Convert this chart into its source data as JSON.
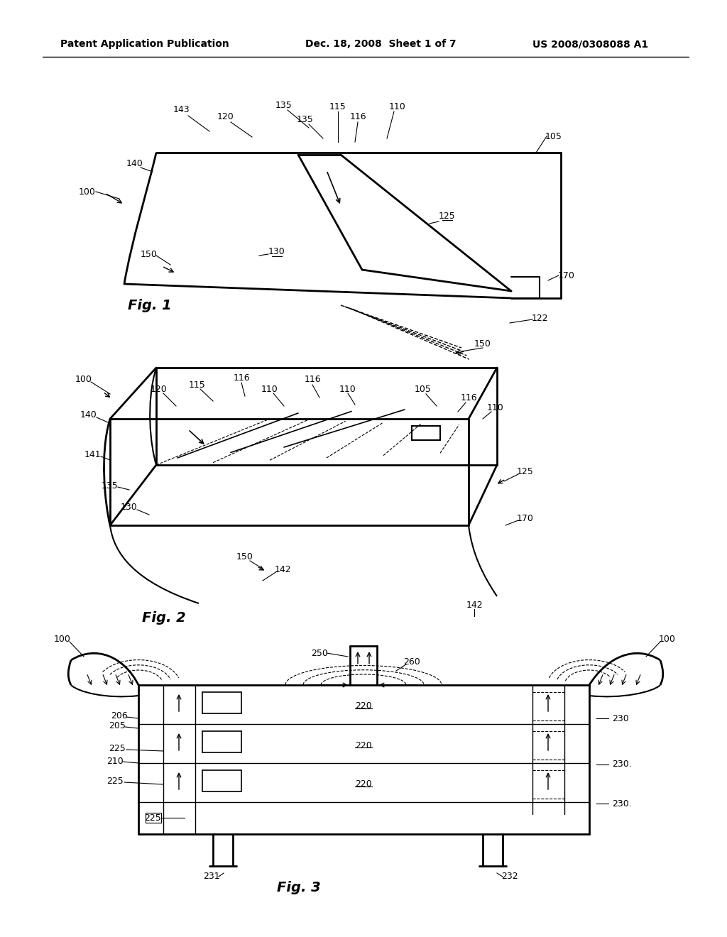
{
  "header_left": "Patent Application Publication",
  "header_mid": "Dec. 18, 2008  Sheet 1 of 7",
  "header_right": "US 2008/0308088 A1",
  "bg_color": "#ffffff",
  "line_color": "#000000",
  "fig1_label": "Fig. 1",
  "fig2_label": "Fig. 2",
  "fig3_label": "Fig. 3"
}
